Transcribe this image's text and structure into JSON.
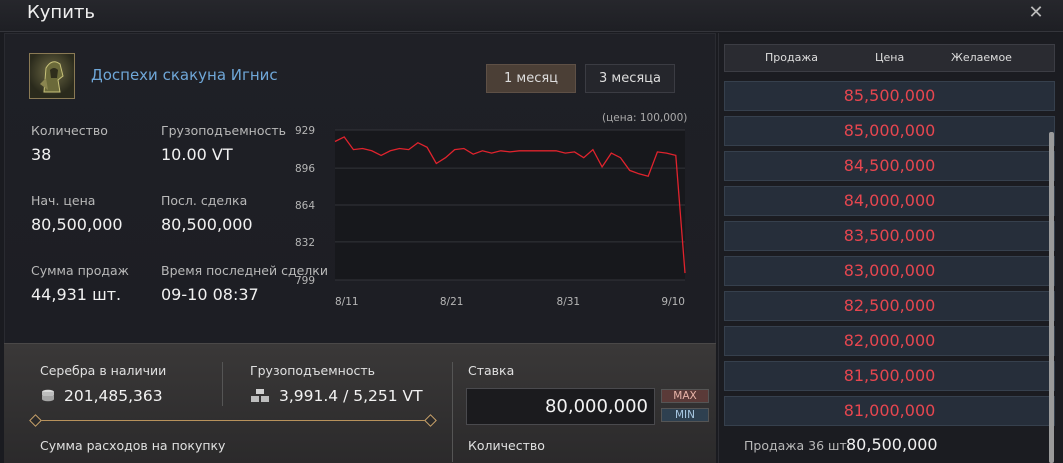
{
  "window": {
    "title": "Купить",
    "close_icon": "close-icon"
  },
  "item": {
    "name": "Доспехи скакуна Игнис",
    "icon": "horse-armor-icon"
  },
  "periods": [
    {
      "label": "1 месяц",
      "active": true
    },
    {
      "label": "3 месяца",
      "active": false
    }
  ],
  "stats": {
    "quantity_label": "Количество",
    "quantity_value": "38",
    "weight_label": "Грузоподъемность",
    "weight_value": "10.00 VT",
    "base_price_label": "Нач. цена",
    "base_price_value": "80,500,000",
    "last_trade_label": "Посл. сделка",
    "last_trade_value": "80,500,000",
    "sales_total_label": "Сумма продаж",
    "sales_total_value": "44,931 шт.",
    "last_trade_time_label": "Время последней сделки",
    "last_trade_time_value": "09-10 08:37"
  },
  "chart_note": "(цена: 100,000)",
  "chart_data": {
    "type": "line",
    "x_ticks": [
      "8/11",
      "8/21",
      "8/31",
      "9/10"
    ],
    "y_ticks": [
      929,
      896,
      864,
      832,
      799
    ],
    "ylim": [
      799,
      929
    ],
    "grid": true,
    "line_color": "#e0232d",
    "series": [
      {
        "values": [
          919,
          923,
          912,
          913,
          911,
          907,
          911,
          913,
          912,
          918,
          914,
          900,
          905,
          912,
          913,
          908,
          911,
          909,
          911,
          910,
          911,
          911,
          911,
          911,
          911,
          909,
          910,
          905,
          912,
          897,
          909,
          905,
          894,
          891,
          889,
          910,
          909,
          907,
          805
        ]
      }
    ]
  },
  "bottom": {
    "silver_label": "Серебра в наличии",
    "silver_value": "201,485,363",
    "silver_icon": "coin-stack-icon",
    "capacity_label": "Грузоподъемность",
    "capacity_value": "3,991.4 / 5,251 VT",
    "capacity_icon": "weight-icon",
    "bid_label": "Ставка",
    "bid_value": "80,000,000",
    "max_label": "MAX",
    "min_label": "MIN",
    "spend_label": "Сумма расходов на покупку",
    "qty_label": "Количество"
  },
  "orderbook": {
    "headers": [
      "Продажа",
      "Цена",
      "Желаемое"
    ],
    "prices": [
      "85,500,000",
      "85,000,000",
      "84,500,000",
      "84,000,000",
      "83,500,000",
      "83,000,000",
      "82,500,000",
      "82,000,000",
      "81,500,000",
      "81,000,000"
    ],
    "sell_label": "Продажа 36 шт.",
    "sell_value": "80,500,000",
    "price_color": "#e6464f"
  }
}
